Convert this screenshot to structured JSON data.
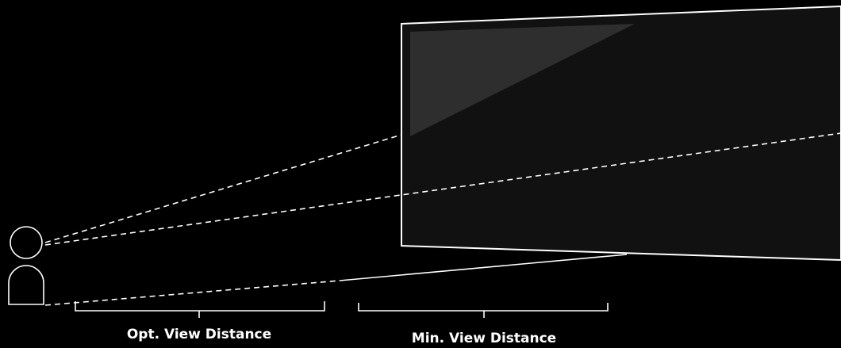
{
  "labels": {
    "optimal": "Opt. View Distance",
    "minimum": "Min. View Distance"
  },
  "icons": {
    "viewer": "person-icon",
    "screen": "tv-screen-icon"
  },
  "colors": {
    "background": "#000000",
    "lines": "#ffffff",
    "screen_fill": "#111111",
    "screen_glare": "#2e2e2e"
  }
}
